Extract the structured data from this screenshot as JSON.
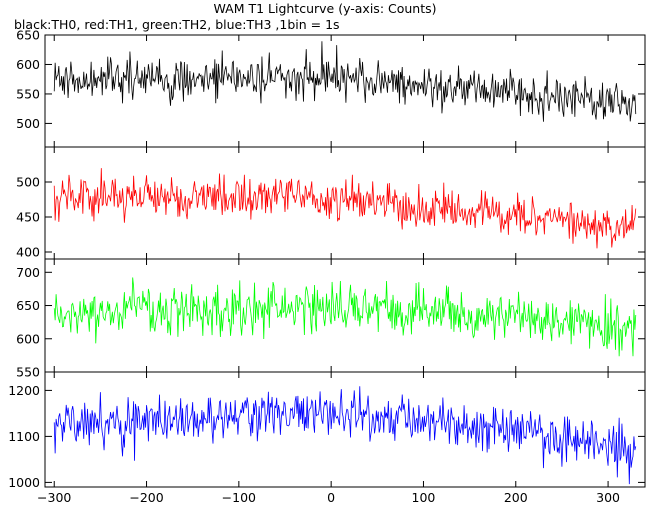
{
  "chart_data": {
    "type": "line",
    "title": "WAM T1 Lightcurve (y-axis: Counts)",
    "subtitle": "black:TH0, red:TH1, green:TH2, blue:TH3 ,1bin = 1s",
    "xlim": [
      -310,
      340
    ],
    "x_ticks": [
      -300,
      -200,
      -100,
      0,
      100,
      200,
      300
    ],
    "x_start": -300,
    "x_end": 330,
    "x_step": 1,
    "grid": false,
    "panels": [
      {
        "name": "TH0",
        "color": "#000000",
        "ylim": [
          460,
          650
        ],
        "y_ticks": [
          500,
          550,
          600,
          650
        ],
        "trend_x": [
          -300,
          -200,
          -100,
          0,
          100,
          200,
          300,
          330
        ],
        "trend_y": [
          575,
          573,
          580,
          583,
          560,
          555,
          535,
          525
        ],
        "noise_sd": 25
      },
      {
        "name": "TH1",
        "color": "#ff0000",
        "ylim": [
          390,
          550
        ],
        "y_ticks": [
          400,
          450,
          500
        ],
        "trend_x": [
          -300,
          -200,
          -100,
          0,
          100,
          200,
          300,
          330
        ],
        "trend_y": [
          478,
          478,
          478,
          478,
          460,
          455,
          440,
          438
        ],
        "noise_sd": 22
      },
      {
        "name": "TH2",
        "color": "#00ff00",
        "ylim": [
          550,
          720
        ],
        "y_ticks": [
          550,
          600,
          650,
          700
        ],
        "trend_x": [
          -300,
          -200,
          -100,
          0,
          100,
          200,
          300,
          330
        ],
        "trend_y": [
          638,
          638,
          645,
          650,
          640,
          635,
          620,
          612
        ],
        "noise_sd": 26
      },
      {
        "name": "TH3",
        "color": "#0000ff",
        "ylim": [
          990,
          1240
        ],
        "y_ticks": [
          1000,
          1100,
          1200
        ],
        "trend_x": [
          -300,
          -200,
          -100,
          0,
          100,
          200,
          300,
          330
        ],
        "trend_y": [
          1125,
          1130,
          1148,
          1150,
          1130,
          1115,
          1080,
          1065
        ],
        "noise_sd": 38
      }
    ]
  }
}
